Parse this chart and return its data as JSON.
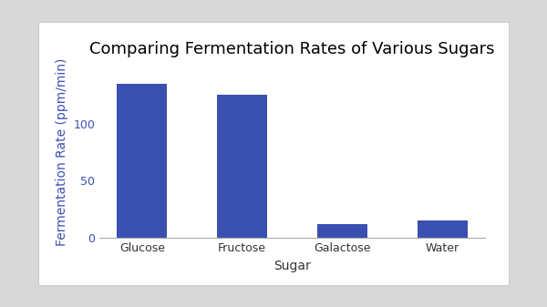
{
  "categories": [
    "Glucose",
    "Fructose",
    "Galactose",
    "Water"
  ],
  "values": [
    135,
    125,
    12,
    15
  ],
  "bar_color": "#3a50b0",
  "title": "Comparing Fermentation Rates of Various Sugars",
  "xlabel": "Sugar",
  "ylabel": "Fermentation Rate (ppm/min)",
  "ylim": [
    0,
    150
  ],
  "yticks": [
    0,
    50,
    100
  ],
  "title_fontsize": 13,
  "label_fontsize": 10,
  "tick_fontsize": 9,
  "axis_label_color": "#3a50b0",
  "tick_label_color_y": "#3a50b0",
  "tick_label_color_x": "#333333",
  "plot_bg": "#ffffff",
  "figure_bg": "#d8d8d8",
  "card_bg": "#ffffff",
  "bar_width": 0.5
}
